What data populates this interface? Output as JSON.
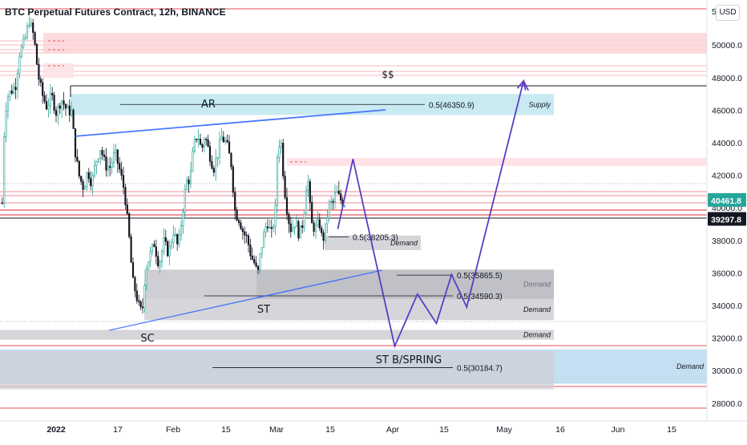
{
  "header": {
    "title": "BTC Perpetual Futures Contract, 12h, BINANCE",
    "currency_button": "USD"
  },
  "chart_data": {
    "type": "candlestick",
    "symbol": "BTC Perpetual Futures Contract",
    "interval": "12h",
    "exchange": "BINANCE",
    "y_axis": {
      "ticks": [
        28000,
        30000,
        32000,
        34000,
        36000,
        38000,
        40000,
        42000,
        44000,
        46000,
        48000,
        50000
      ],
      "tick_labels": [
        "28000.0",
        "30000.0",
        "32000.0",
        "34000.0",
        "36000.0",
        "38000.0",
        "40000.0",
        "42000.0",
        "44000.0",
        "46000.0",
        "48000.0",
        "50000.0"
      ],
      "partial_top_label": "5"
    },
    "x_axis": {
      "labels": [
        "2022",
        "17",
        "Feb",
        "15",
        "Mar",
        "15",
        "Apr",
        "15",
        "May",
        "16",
        "Jun",
        "15"
      ]
    },
    "price_badges": [
      {
        "label": "40461.8",
        "value": 40461.8,
        "color": "#26a69a"
      },
      {
        "label": "39297.8",
        "value": 39297.8,
        "color": "#131722"
      }
    ],
    "zones": [
      {
        "label": "Supply",
        "low": 45700,
        "high": 47000,
        "color": "#bfe6ee"
      },
      {
        "label": "Demand",
        "low": 37400,
        "high": 38300,
        "color": "#cfcfd4"
      },
      {
        "label": "Demand",
        "low": 34400,
        "high": 36200,
        "color": "#c6c6cc"
      },
      {
        "label": "Demand",
        "low": 33100,
        "high": 34400,
        "color": "#cfcfd4"
      },
      {
        "label": "Demand",
        "low": 31900,
        "high": 32500,
        "color": "#cfcfd4"
      },
      {
        "label": "Demand",
        "low": 29200,
        "high": 31300,
        "color": "#b9d9ef"
      }
    ],
    "midlines": [
      {
        "label": "0.5(46350.9)",
        "value": 46350.9
      },
      {
        "label": "0.5(38205.3)",
        "value": 38205.3
      },
      {
        "label": "0.5(35865.5)",
        "value": 35865.5
      },
      {
        "label": "0.5(34590.3)",
        "value": 34590.3
      },
      {
        "label": "0.5(30184.7)",
        "value": 30184.7
      }
    ],
    "annotations": [
      "AR",
      "ST",
      "SC",
      "$$",
      "ST B/SPRING"
    ],
    "target_level": 47500,
    "projection_path": [
      {
        "date": "2022-03-18",
        "price": 38700
      },
      {
        "date": "2022-03-22",
        "price": 43000
      },
      {
        "date": "2022-04-02",
        "price": 31500
      },
      {
        "date": "2022-04-08",
        "price": 34700
      },
      {
        "date": "2022-04-13",
        "price": 32900
      },
      {
        "date": "2022-04-17",
        "price": 35900
      },
      {
        "date": "2022-04-21",
        "price": 33900
      },
      {
        "date": "2022-05-06",
        "price": 47800
      }
    ]
  }
}
